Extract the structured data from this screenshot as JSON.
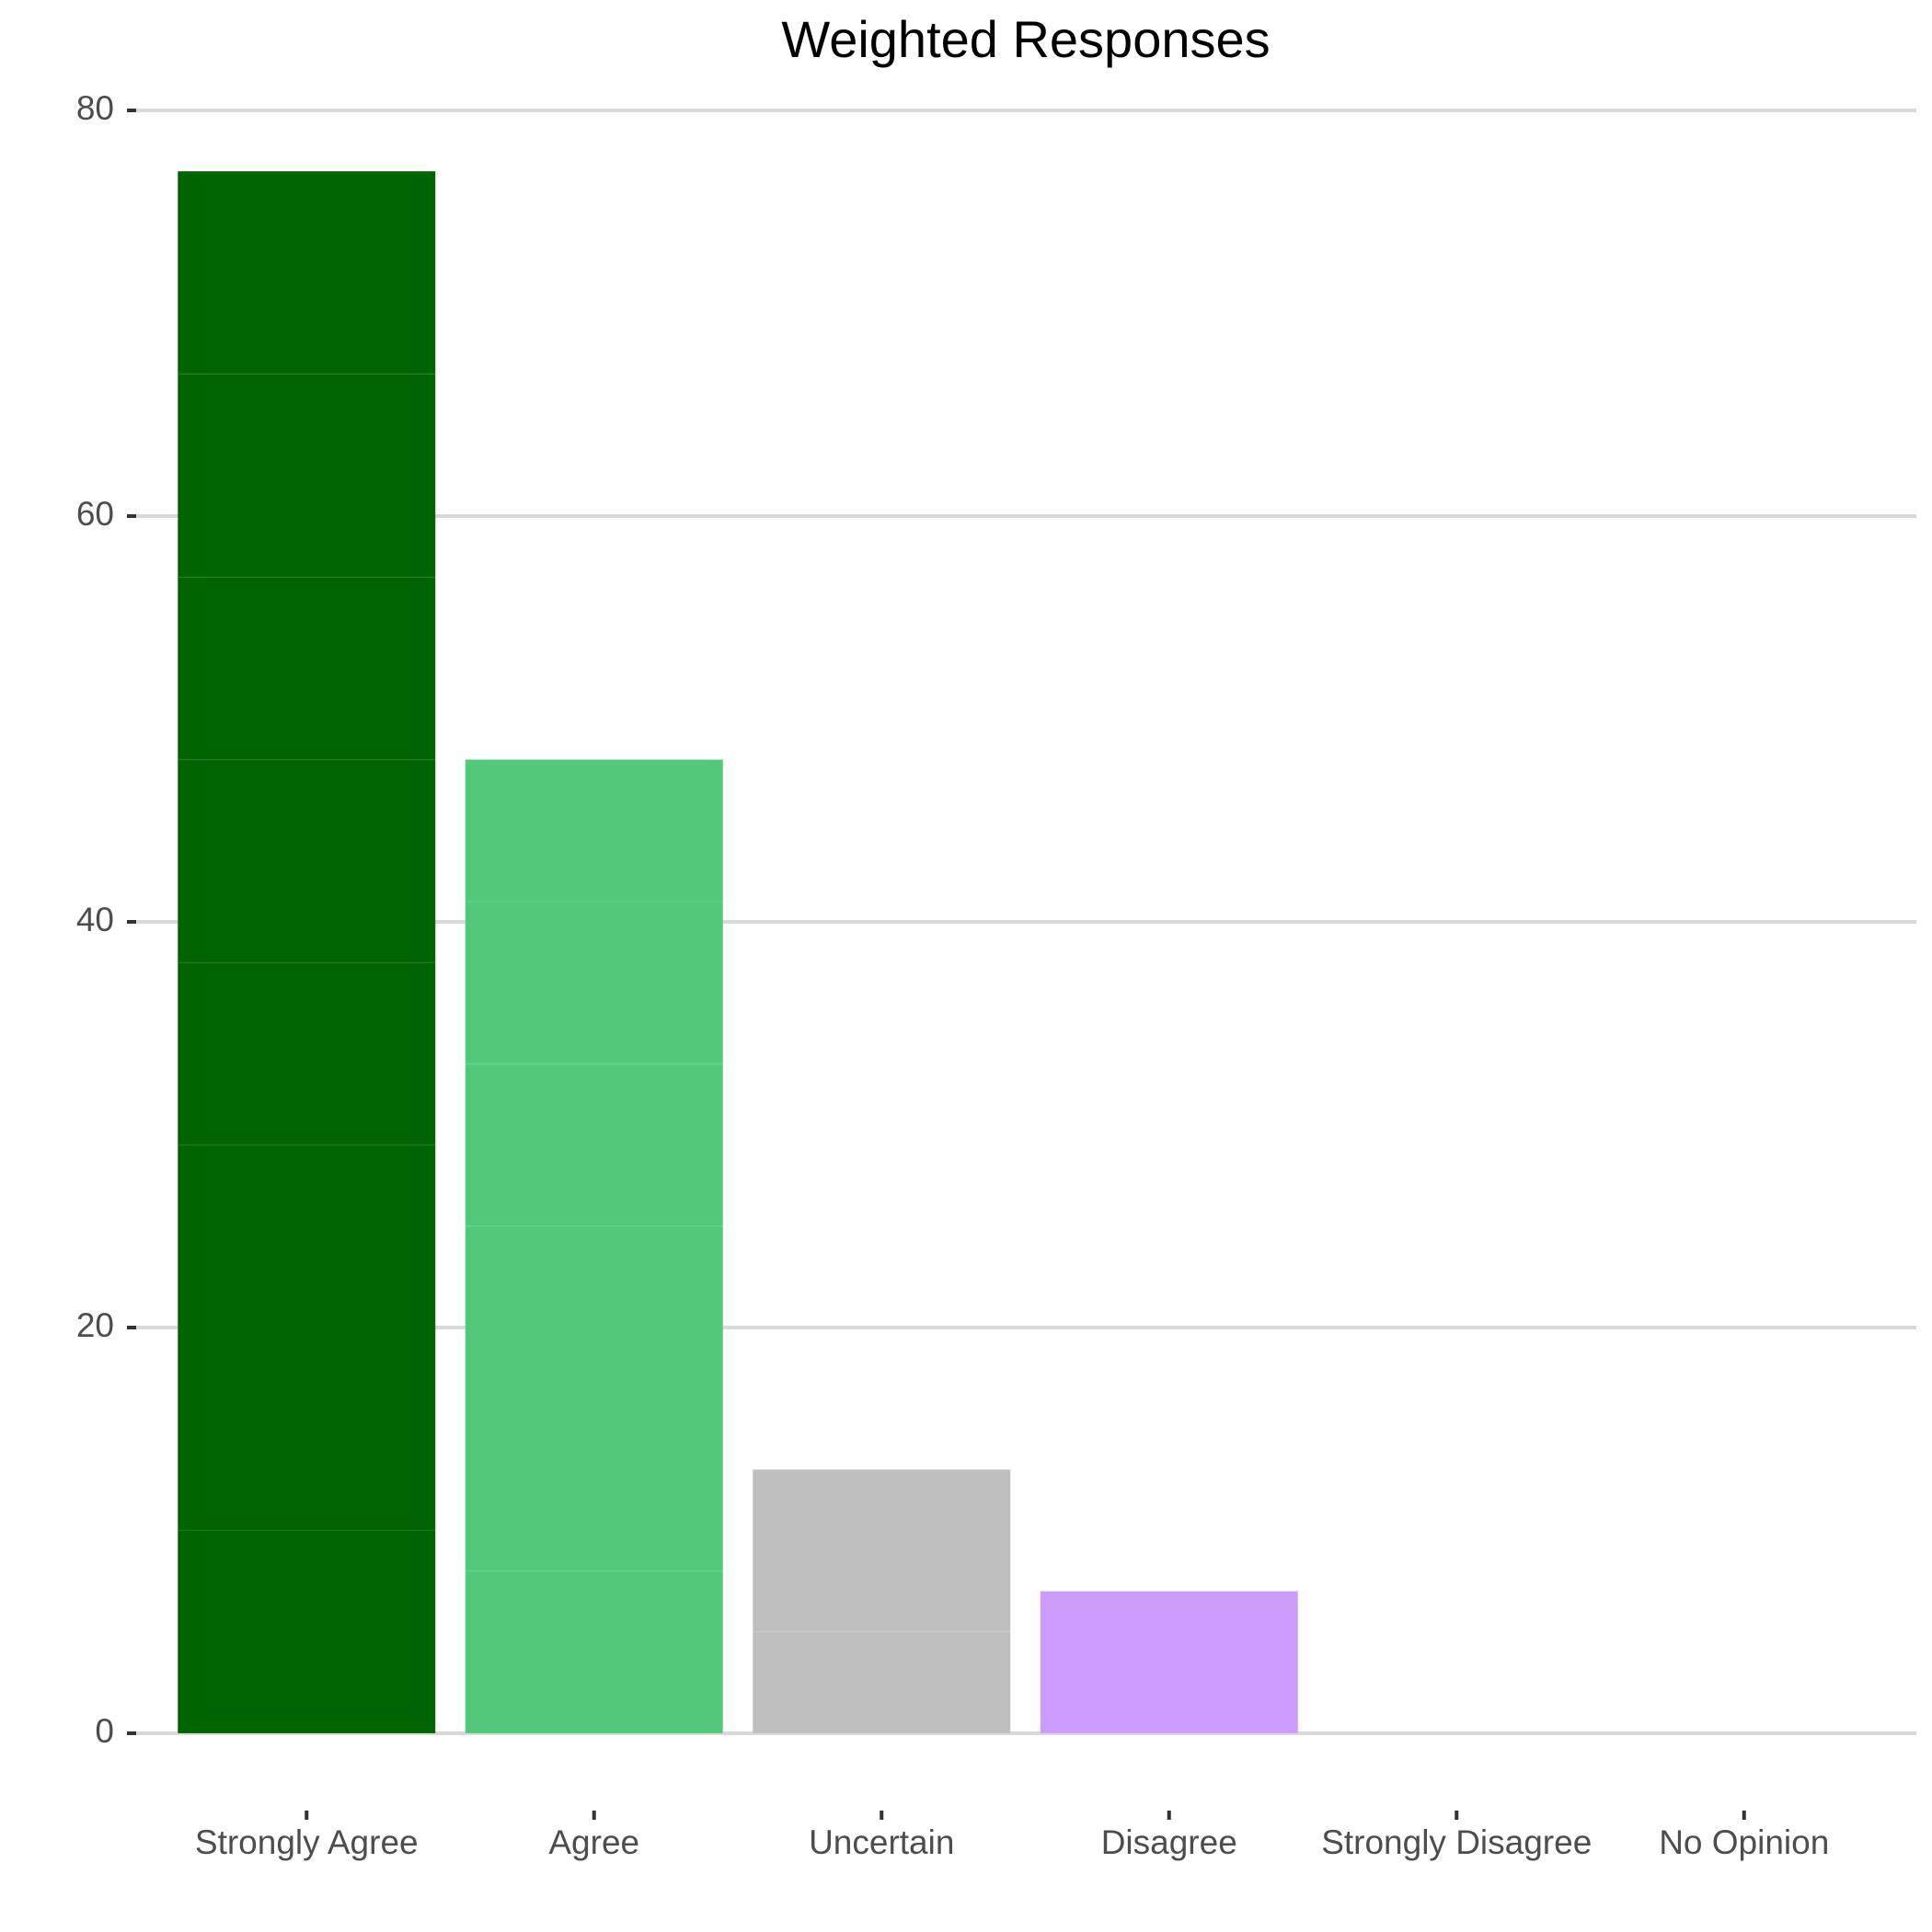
{
  "chart_data": {
    "type": "stacked_bar",
    "title": "Weighted Responses",
    "categories": [
      "Strongly Agree",
      "Agree",
      "Uncertain",
      "Disagree",
      "Strongly Disagree",
      "No Opinion"
    ],
    "segments": [
      [
        10,
        19,
        9,
        10,
        9,
        10,
        10
      ],
      [
        8,
        17,
        8,
        8,
        7
      ],
      [
        5,
        8
      ],
      [
        7
      ],
      [],
      []
    ],
    "colors": [
      "#006400",
      "#52c97a",
      "#bfbfbf",
      "#cc9cfc",
      "#888888",
      "#888888"
    ],
    "ylim": [
      0,
      80
    ],
    "yticks": [
      0,
      20,
      40,
      60,
      80
    ],
    "grid": true
  }
}
